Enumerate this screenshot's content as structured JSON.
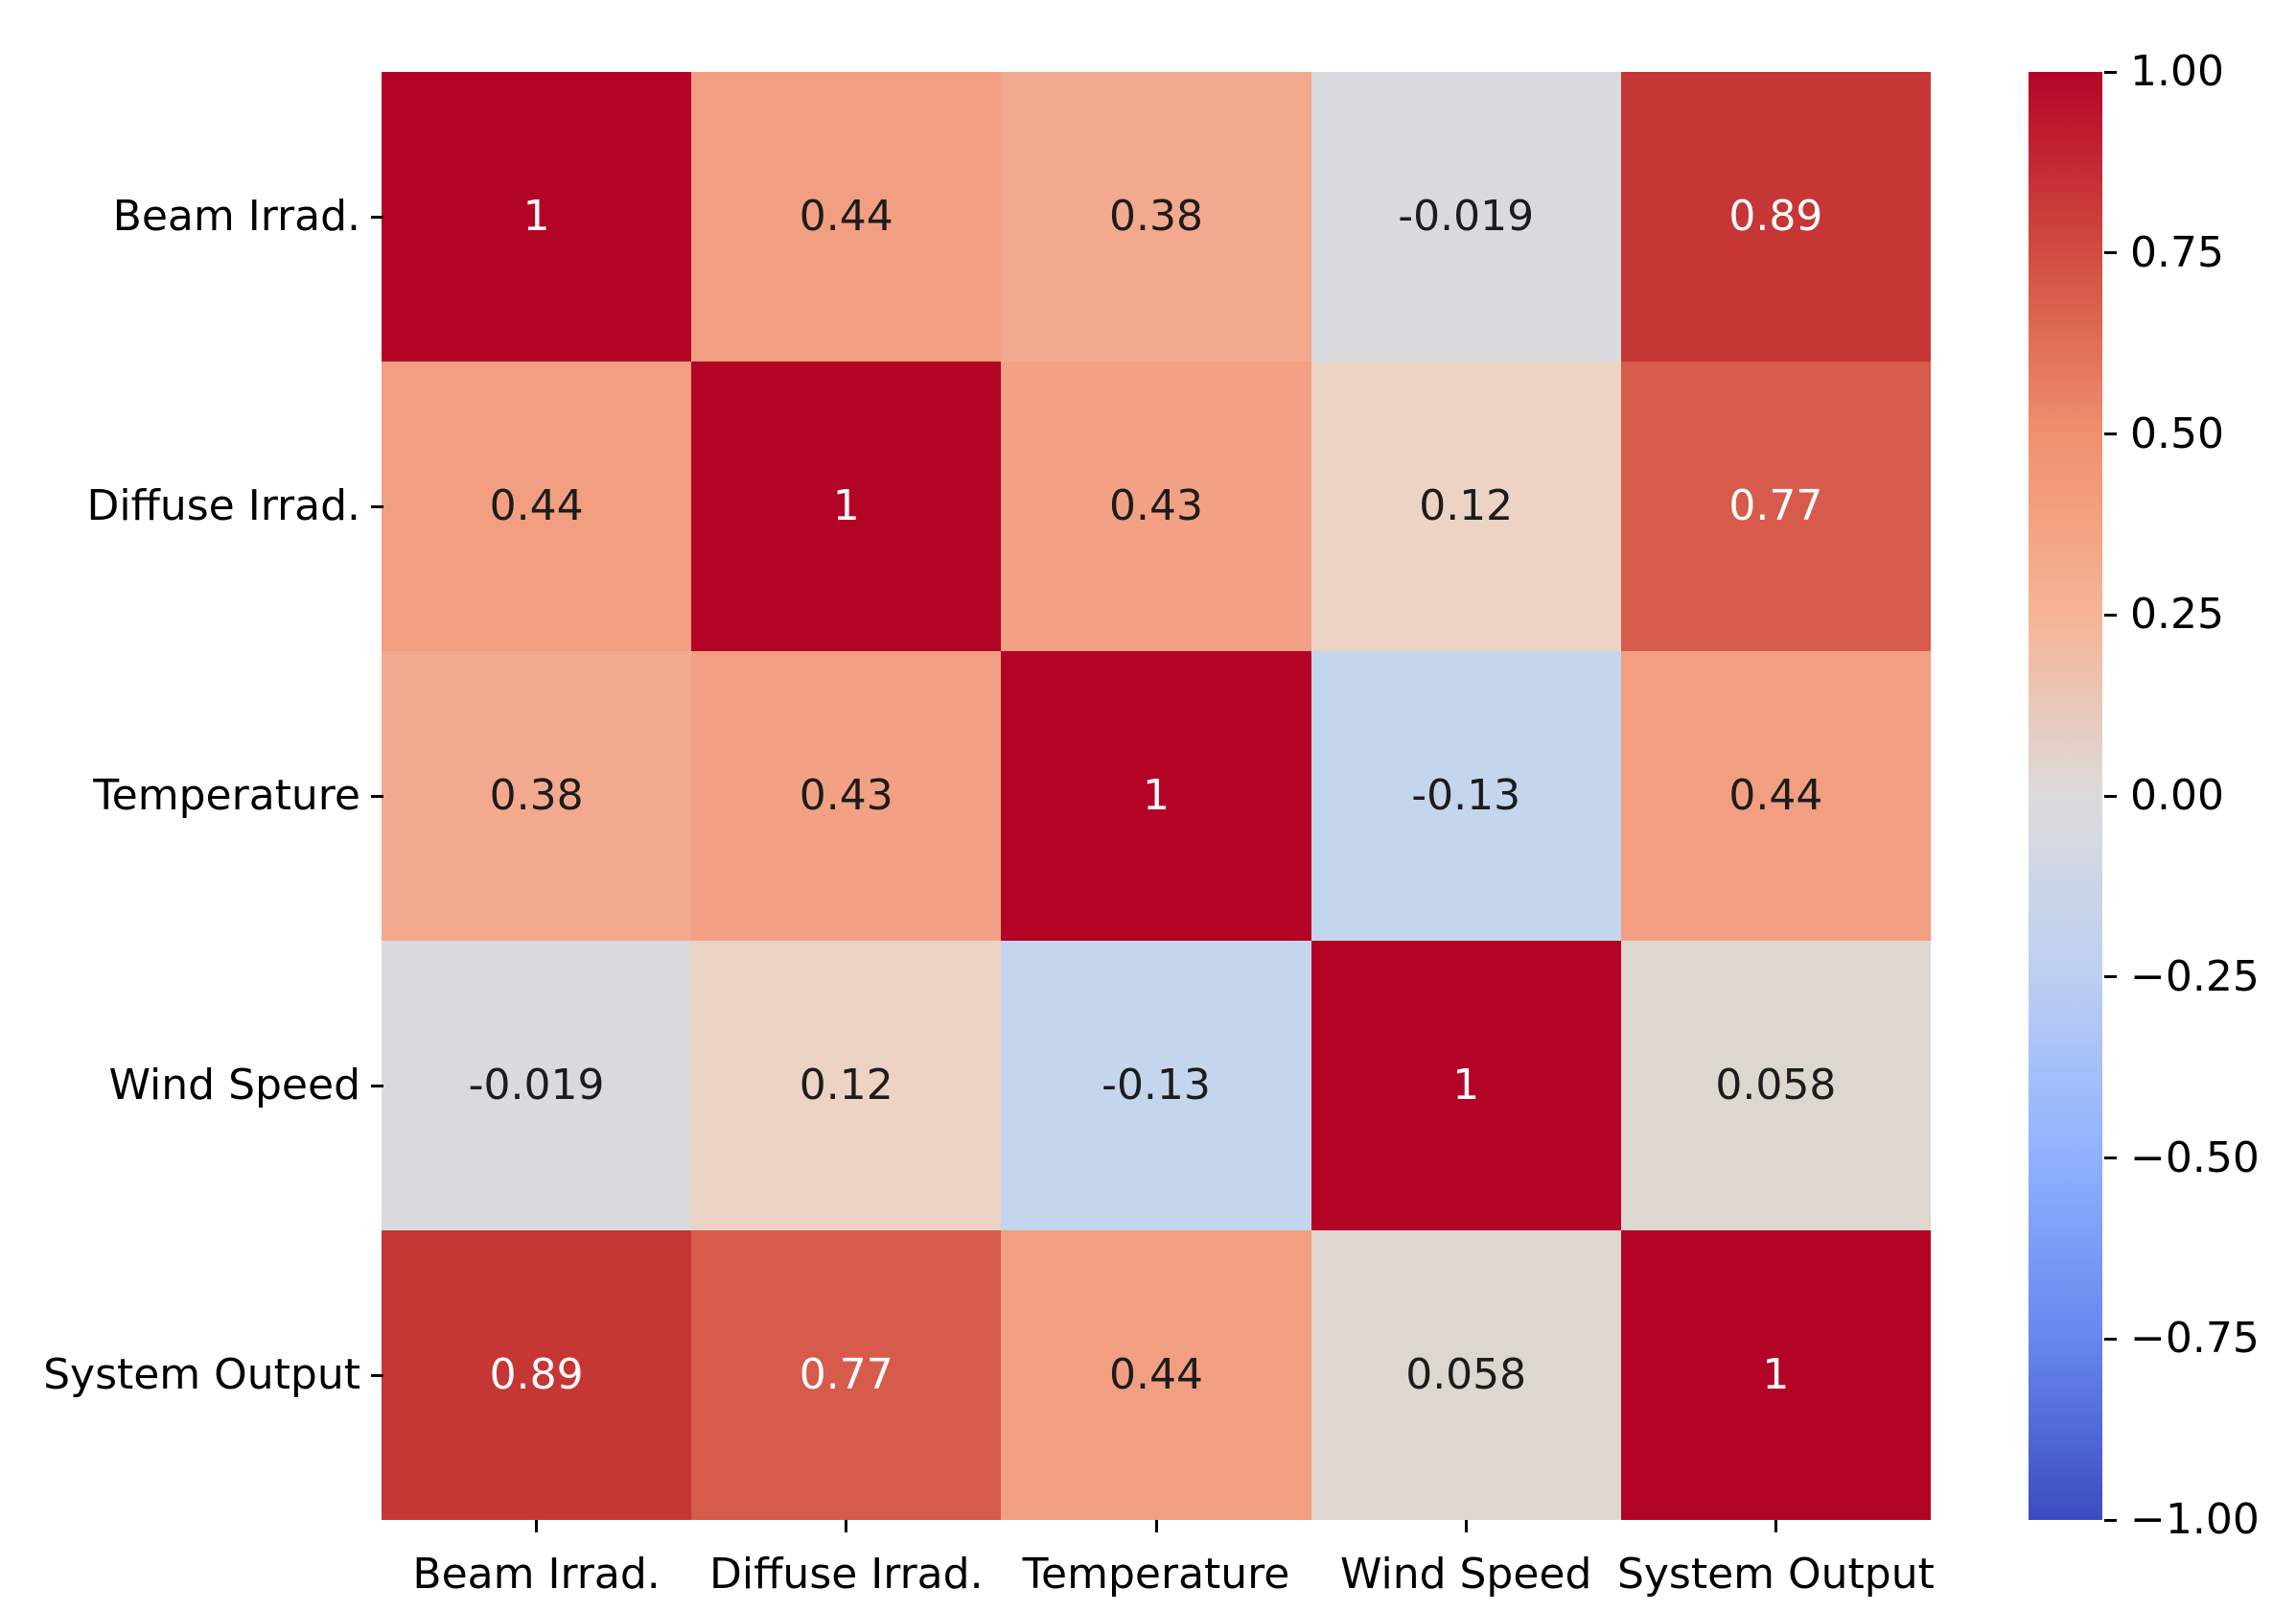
{
  "figure": {
    "background": "#ffffff"
  },
  "colors": {
    "annotation_dark": "#1c1c1c",
    "annotation_light": "#ffffff",
    "axis_text": "#000000",
    "tick_color": "#000000",
    "cmap_max": "#b40426",
    "cmap_mid": "#dcdbdb",
    "cmap_min": "#3b4cc0"
  },
  "chart_data": {
    "type": "heatmap",
    "title": "",
    "xlabel": "",
    "ylabel": "",
    "grid": false,
    "legend_position": "colorbar-right",
    "colormap": "coolwarm",
    "vmin": -1,
    "vmax": 1,
    "categories": [
      "Beam Irrad.",
      "Diffuse Irrad.",
      "Temperature",
      "Wind Speed",
      "System Output"
    ],
    "matrix": [
      [
        1,
        0.44,
        0.38,
        -0.019,
        0.89
      ],
      [
        0.44,
        1,
        0.43,
        0.12,
        0.77
      ],
      [
        0.38,
        0.43,
        1,
        -0.13,
        0.44
      ],
      [
        -0.019,
        0.12,
        -0.13,
        1,
        0.058
      ],
      [
        0.89,
        0.77,
        0.44,
        0.058,
        1
      ]
    ],
    "annotations": [
      [
        "1",
        "0.44",
        "0.38",
        "-0.019",
        "0.89"
      ],
      [
        "0.44",
        "1",
        "0.43",
        "0.12",
        "0.77"
      ],
      [
        "0.38",
        "0.43",
        "1",
        "-0.13",
        "0.44"
      ],
      [
        "-0.019",
        "0.12",
        "-0.13",
        "1",
        "0.058"
      ],
      [
        "0.89",
        "0.77",
        "0.44",
        "0.058",
        "1"
      ]
    ],
    "cell_colors": [
      [
        "#b40426",
        "#f29e80",
        "#f3a98d",
        "#d9dadd",
        "#c53635"
      ],
      [
        "#f29e80",
        "#b40426",
        "#f2a184",
        "#ecd3c4",
        "#d65b4b"
      ],
      [
        "#f3a98d",
        "#f2a184",
        "#b40426",
        "#c4d5ee",
        "#f29e80"
      ],
      [
        "#d9dadd",
        "#ecd3c4",
        "#c4d5ee",
        "#b40426",
        "#ded7d0"
      ],
      [
        "#c53635",
        "#d65b4b",
        "#f29e80",
        "#ded7d0",
        "#b40426"
      ]
    ],
    "text_colors": [
      [
        "light",
        "dark",
        "dark",
        "dark",
        "light"
      ],
      [
        "dark",
        "light",
        "dark",
        "dark",
        "light"
      ],
      [
        "dark",
        "dark",
        "light",
        "dark",
        "dark"
      ],
      [
        "dark",
        "dark",
        "dark",
        "light",
        "dark"
      ],
      [
        "light",
        "light",
        "dark",
        "dark",
        "light"
      ]
    ],
    "colorbar": {
      "vmin": -1,
      "vmax": 1,
      "tick_labels": [
        "1.00",
        "0.75",
        "0.50",
        "0.25",
        "0.00",
        "−0.25",
        "−0.50",
        "−0.75",
        "−1.00"
      ],
      "gradient_stops": [
        {
          "pos": 0.0,
          "color": "#b40426"
        },
        {
          "pos": 0.125,
          "color": "#d14c41"
        },
        {
          "pos": 0.25,
          "color": "#f0906f"
        },
        {
          "pos": 0.375,
          "color": "#f6b495"
        },
        {
          "pos": 0.5,
          "color": "#dcdbdb"
        },
        {
          "pos": 0.625,
          "color": "#bccff2"
        },
        {
          "pos": 0.75,
          "color": "#8fb1fe"
        },
        {
          "pos": 0.875,
          "color": "#6787ee"
        },
        {
          "pos": 1.0,
          "color": "#3b4cc0"
        }
      ]
    }
  }
}
